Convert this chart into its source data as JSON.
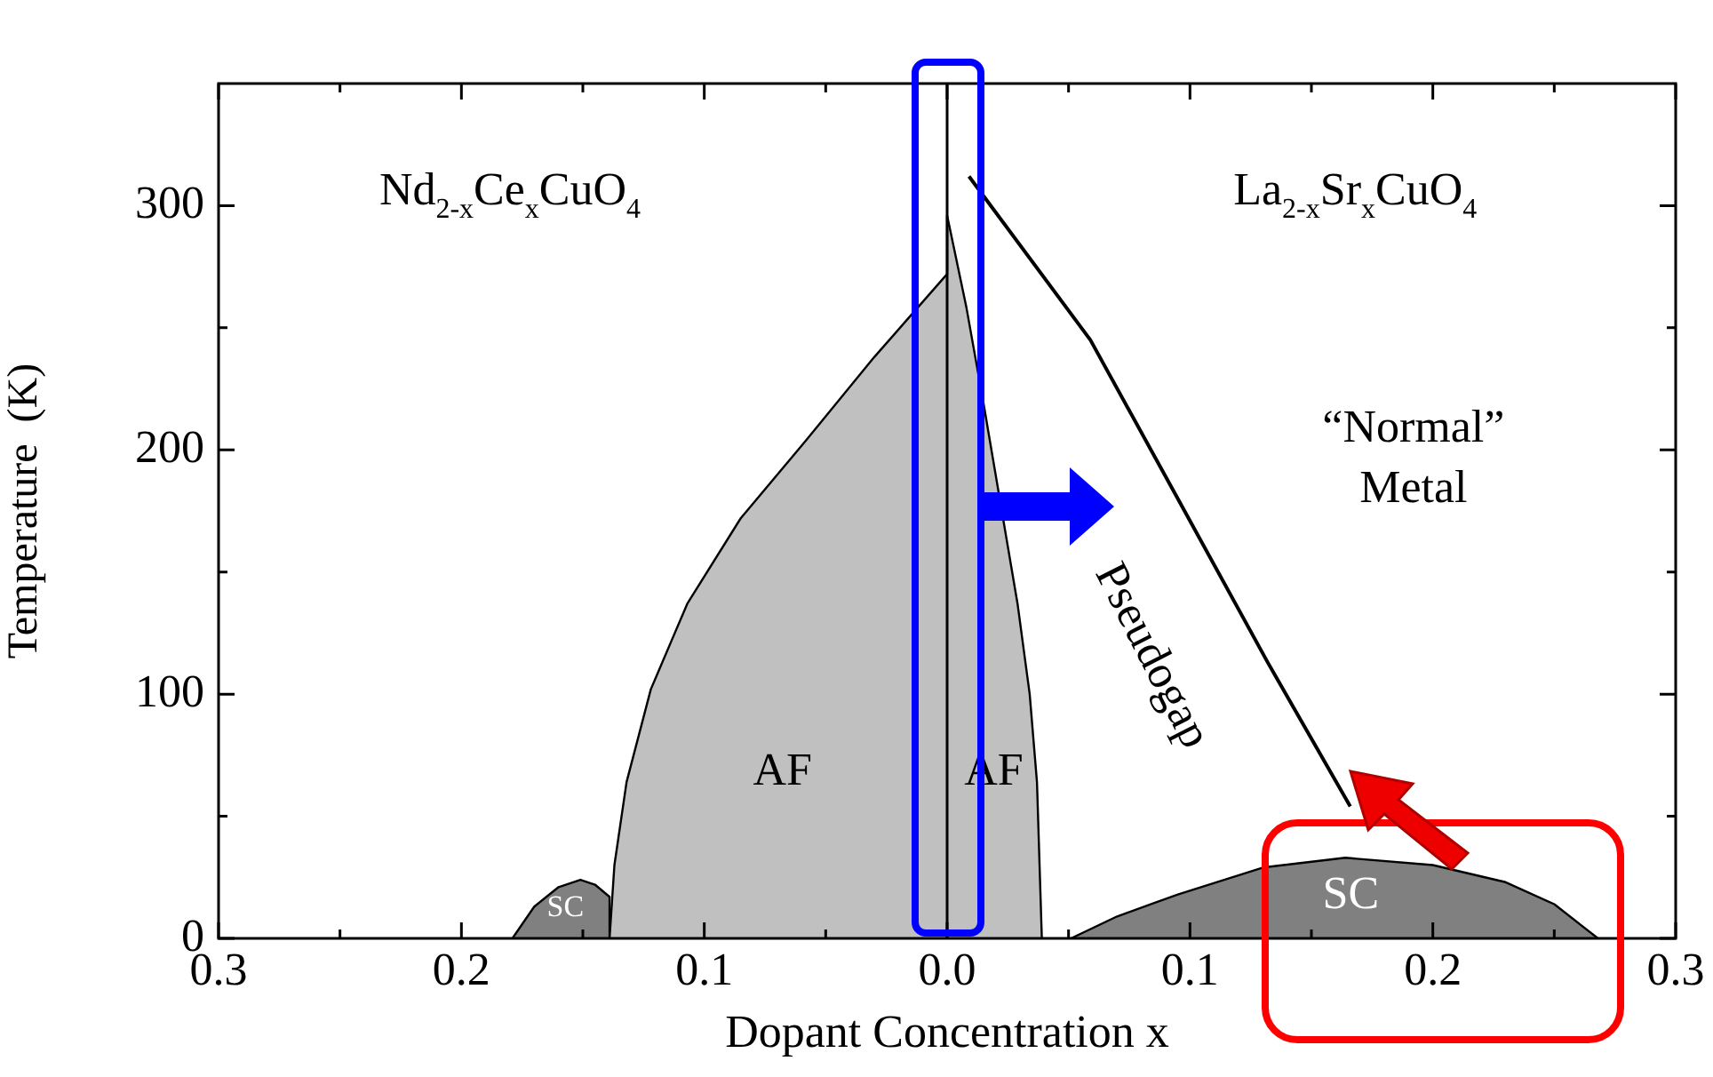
{
  "chart_data": {
    "type": "area",
    "xlabel": "Dopant Concentration x",
    "ylabel": "Temperature  (K)",
    "xlim": [
      -0.3,
      0.3
    ],
    "xticks": [
      {
        "value": -0.3,
        "label": "0.3"
      },
      {
        "value": -0.25,
        "label": null
      },
      {
        "value": -0.2,
        "label": "0.2"
      },
      {
        "value": -0.15,
        "label": null
      },
      {
        "value": -0.1,
        "label": "0.1"
      },
      {
        "value": -0.05,
        "label": null
      },
      {
        "value": 0,
        "label": "0.0"
      },
      {
        "value": 0.05,
        "label": null
      },
      {
        "value": 0.1,
        "label": "0.1"
      },
      {
        "value": 0.15,
        "label": null
      },
      {
        "value": 0.2,
        "label": "0.2"
      },
      {
        "value": 0.25,
        "label": null
      },
      {
        "value": 0.3,
        "label": "0.3"
      }
    ],
    "ylim": [
      0,
      350
    ],
    "yticks": [
      0,
      {
        "value": 50,
        "label": null
      },
      100,
      {
        "value": 150,
        "label": null
      },
      200,
      {
        "value": 250,
        "label": null
      },
      300
    ],
    "series": [
      {
        "color": "#c0c0c0",
        "x": [
          -0.139,
          -0.137,
          -0.132,
          -0.122,
          -0.107,
          -0.085,
          -0.058,
          -0.03,
          0,
          0,
          0.008,
          0.015,
          0.029,
          0.034,
          0.037,
          0.039
        ],
        "values": [
          0,
          30,
          64,
          102,
          137,
          172,
          204,
          238,
          272,
          296,
          258,
          219,
          137,
          100,
          64,
          0
        ]
      },
      {
        "color": "#808080",
        "x": [
          -0.179,
          -0.17,
          -0.16,
          -0.151,
          -0.145,
          -0.139,
          -0.139
        ],
        "values": [
          0,
          13,
          21,
          24,
          22,
          17,
          0
        ]
      },
      {
        "color": "#808080",
        "x": [
          0.051,
          0.07,
          0.095,
          0.13,
          0.164,
          0.2,
          0.23,
          0.25,
          0.268
        ],
        "values": [
          0,
          9,
          18,
          29,
          33,
          30,
          23,
          14,
          0
        ]
      },
      {
        "type": "line",
        "color": "#000000",
        "x": [
          0.009,
          0.059,
          0.095,
          0.132,
          0.166
        ],
        "values": [
          312,
          245,
          180,
          113,
          54
        ]
      }
    ],
    "ref_lines": [
      {
        "axis": "x",
        "value": 0,
        "color": "#000000"
      }
    ],
    "annotations": [
      "Nd$_{2-x}$Ce$_{x}$CuO$_{4}$",
      "La$_{2-x}$Sr$_{x}$CuO$_{4}$",
      "AF",
      "AF",
      "SC",
      "SC",
      "“Normal”\nMetal",
      "Pseudogap"
    ],
    "grid": false,
    "legend": false,
    "marker": "none",
    "line_style": "solid"
  }
}
